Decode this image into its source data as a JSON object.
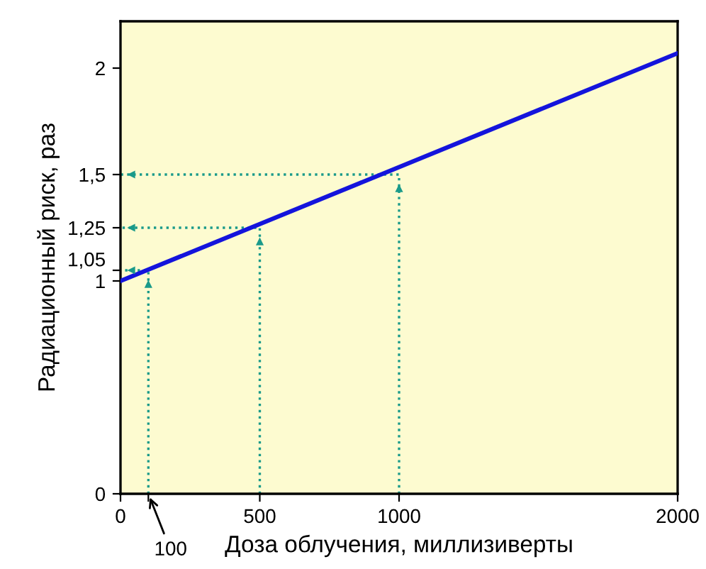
{
  "chart_data": {
    "type": "line",
    "xlabel": "Доза облучения, миллизиверты",
    "ylabel": "Радиационный риск, раз",
    "x": [
      0,
      2000
    ],
    "series": [
      {
        "color": "#1414dc",
        "values": [
          1,
          2.07
        ]
      },
      {
        "color": "#1a9a8a",
        "line_style": "dotted",
        "x": [
          100,
          100,
          0
        ],
        "values": [
          0,
          1.05,
          1.05
        ]
      },
      {
        "color": "#1a9a8a",
        "line_style": "dotted",
        "x": [
          500,
          500,
          0
        ],
        "values": [
          0,
          1.25,
          1.25
        ]
      },
      {
        "color": "#1a9a8a",
        "line_style": "dotted",
        "x": [
          1000,
          1000,
          0
        ],
        "values": [
          0,
          1.5,
          1.5
        ]
      }
    ],
    "xlim": [
      0,
      2000
    ],
    "ylim": [
      0,
      2.22
    ],
    "xticks": [
      0,
      {
        "value": 100,
        "label": null
      },
      500,
      1000,
      2000
    ],
    "yticks": [
      0,
      1,
      {
        "value": 1.05,
        "label": "1,05"
      },
      {
        "value": 1.25,
        "label": "1,25"
      },
      {
        "value": 1.5,
        "label": "1,5"
      },
      2
    ],
    "annotations": [
      "100"
    ],
    "grid": false,
    "legend": false,
    "marker": "none",
    "line_style": "solid"
  }
}
